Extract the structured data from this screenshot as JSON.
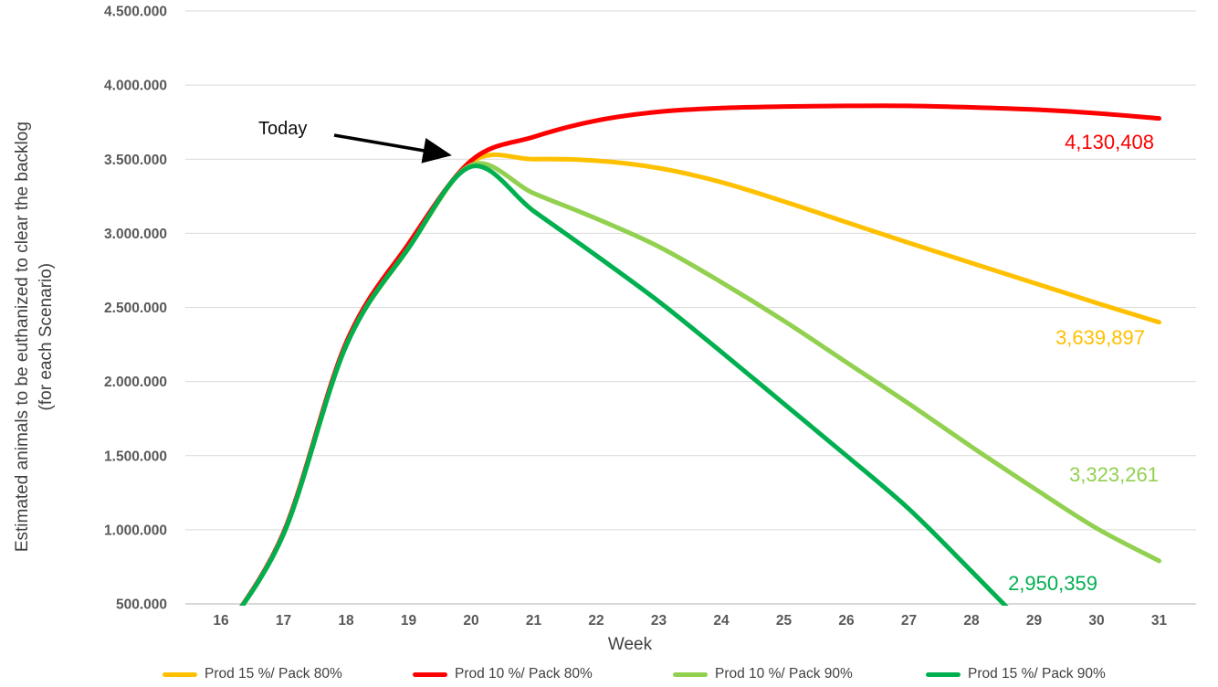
{
  "colors": {
    "gridline": "#d9d9d9",
    "axis_line": "#bfbfbf",
    "tick_text": "#595959",
    "axis_title_text": "#404040",
    "annotation_arrow": "#000000"
  },
  "chart_data": {
    "type": "line",
    "xlabel": "Week",
    "y_axis_title_line1": "Estimated animals to be euthanized to clear the backlog",
    "y_axis_title_line2": "(for each Scenario)",
    "x": [
      16,
      17,
      18,
      19,
      20,
      21,
      22,
      23,
      24,
      25,
      26,
      27,
      28,
      29,
      30,
      31
    ],
    "x_tick_labels": [
      "16",
      "17",
      "18",
      "19",
      "20",
      "21",
      "22",
      "23",
      "24",
      "25",
      "26",
      "27",
      "28",
      "29",
      "30",
      "31"
    ],
    "ylim": [
      500000,
      4500000
    ],
    "y_ticks": [
      500000,
      1000000,
      1500000,
      2000000,
      2500000,
      3000000,
      3500000,
      4000000,
      4500000
    ],
    "y_tick_labels": [
      "500.000",
      "1.000.000",
      "1.500.000",
      "2.000.000",
      "2.500.000",
      "3.000.000",
      "3.500.000",
      "4.000.000",
      "4.500.000"
    ],
    "grid": "horizontal",
    "legend_position": "bottom",
    "annotation": {
      "text": "Today",
      "points_to_week": 20,
      "points_to_value": 3500000
    },
    "series": [
      {
        "name": "Prod 15 %/ Pack 80%",
        "color": "#FFC000",
        "end_label": "3,639,897",
        "values": [
          280000,
          970000,
          2240000,
          2900000,
          3480000,
          3500000,
          3490000,
          3440000,
          3345000,
          3215000,
          3075000,
          2935000,
          2800000,
          2665000,
          2530000,
          2400000
        ]
      },
      {
        "name": "Prod 10 %/ Pack 80%",
        "color": "#FE0000",
        "end_label": "4,130,408",
        "values": [
          280000,
          980000,
          2260000,
          2930000,
          3490000,
          3650000,
          3760000,
          3820000,
          3845000,
          3855000,
          3860000,
          3860000,
          3850000,
          3835000,
          3810000,
          3775000
        ]
      },
      {
        "name": "Prod 10 %/ Pack 90%",
        "color": "#92D050",
        "end_label": "3,323,261",
        "values": [
          280000,
          970000,
          2240000,
          2900000,
          3460000,
          3270000,
          3100000,
          2910000,
          2670000,
          2410000,
          2130000,
          1850000,
          1560000,
          1280000,
          1010000,
          790000
        ]
      },
      {
        "name": "Prod 15 %/ Pack 90%",
        "color": "#00B050",
        "end_label": "2,950,359",
        "values": [
          280000,
          970000,
          2240000,
          2900000,
          3450000,
          3150000,
          2850000,
          2540000,
          2200000,
          1850000,
          1500000,
          1140000,
          720000,
          290000,
          null,
          null
        ]
      }
    ]
  }
}
